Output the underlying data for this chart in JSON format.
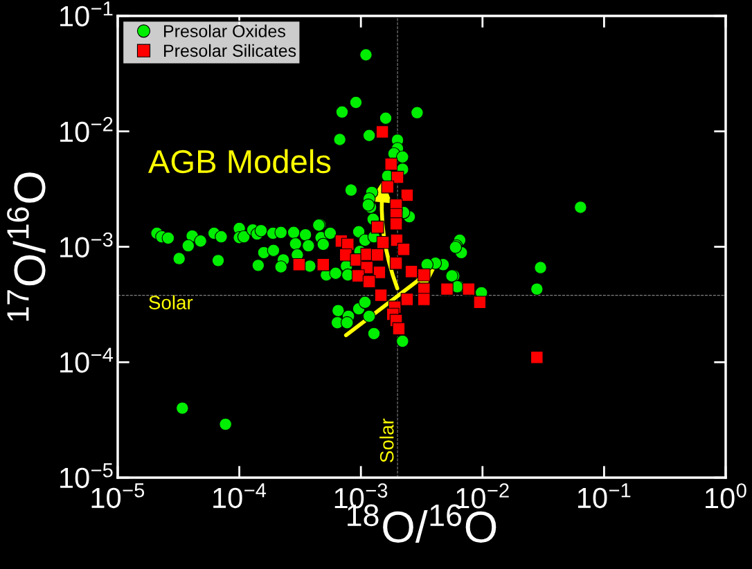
{
  "chart_data": {
    "type": "scatter",
    "xlabel": "$^{18}$O/$^{16}$O",
    "ylabel": "$^{17}$O/$^{16}$O",
    "log": "xy",
    "grid": false,
    "legend": "top left",
    "xlim": [
      1e-05,
      1
    ],
    "ylim": [
      1e-05,
      0.1
    ],
    "xticks": [
      {
        "value": 1e-05,
        "label": "10$^{−5}$"
      },
      {
        "value": 0.0001,
        "label": "10$^{−4}$"
      },
      {
        "value": 0.001,
        "label": "10$^{−3}$"
      },
      {
        "value": 0.01,
        "label": "10$^{−2}$"
      },
      {
        "value": 0.1,
        "label": "10$^{−1}$"
      },
      {
        "value": 1,
        "label": "10$^{0}$"
      }
    ],
    "yticks": [
      {
        "value": 1e-05,
        "label": "10$^{−5}$"
      },
      {
        "value": 0.0001,
        "label": "10$^{−4}$"
      },
      {
        "value": 0.001,
        "label": "10$^{−3}$"
      },
      {
        "value": 0.01,
        "label": "10$^{−2}$"
      },
      {
        "value": 0.1,
        "label": "10$^{−1}$"
      }
    ],
    "ref_lines": [
      {
        "axis": "x",
        "value": 0.002,
        "label": "Solar",
        "color": "#808080",
        "line_style": "dashed"
      },
      {
        "axis": "y",
        "value": 0.00038,
        "label": "Solar",
        "color": "#808080",
        "line_style": "dashed"
      }
    ],
    "annotations": [
      "AGB Models"
    ],
    "series": [
      {
        "name": "Presolar Oxides",
        "color": "#00ee00",
        "marker": "circle",
        "x": [
          0.0011,
          0.0007,
          0.00091,
          0.0029,
          0.0016,
          0.00117,
          0.00067,
          0.064,
          0.00083,
          0.00046,
          0.03,
          0.028,
          0.0064,
          0.0058,
          0.0065,
          0.0061,
          0.00128,
          3.4e-05,
          7.7e-05,
          2.1e-05,
          2.3e-05,
          2.6e-05,
          4.1e-05,
          3.8e-05,
          4.8e-05,
          3.2e-05,
          6.2e-05,
          7.1e-05,
          6.7e-05,
          0.0001,
          0.0001,
          0.000109,
          0.000129,
          0.00014,
          0.000151,
          0.000143,
          0.000159,
          0.000189,
          0.00022,
          0.000191,
          0.00023,
          0.00022,
          0.00028,
          0.00029,
          0.00035,
          0.00037,
          0.00045,
          0.00047,
          0.00049,
          0.00038,
          0.0003,
          0.002,
          0.002,
          0.00187,
          0.0022,
          0.0022,
          0.00166,
          0.00123,
          0.00117,
          0.0012,
          0.00126,
          0.0025,
          0.00225,
          0.00115,
          0.00056,
          0.00049,
          0.00052,
          0.00062,
          0.00076,
          0.00078,
          0.00096,
          0.00108,
          0.00128,
          0.00098,
          0.0067,
          0.006,
          0.00475,
          0.0041,
          0.0035,
          0.0056,
          0.0062,
          0.0098,
          0.00065,
          0.00079,
          0.00064,
          0.00077,
          0.00096,
          0.00108,
          0.0022,
          0.00117
        ],
        "values": [
          0.046,
          0.0147,
          0.0178,
          0.0145,
          0.013,
          0.0092,
          0.0085,
          0.0022,
          0.0031,
          0.00155,
          0.00066,
          0.00043,
          0.00045,
          0.00056,
          0.00114,
          0.00102,
          0.000177,
          4e-05,
          2.9e-05,
          0.00131,
          0.00122,
          0.00119,
          0.00124,
          0.00102,
          0.00112,
          0.00079,
          0.00131,
          0.00122,
          0.00076,
          0.00144,
          0.0012,
          0.00122,
          0.0014,
          0.00129,
          0.00138,
          0.00069,
          0.00089,
          0.00131,
          0.00133,
          0.00093,
          0.00077,
          0.00067,
          0.00133,
          0.00106,
          0.00127,
          0.00102,
          0.00154,
          0.0012,
          0.00105,
          0.00068,
          0.00085,
          0.0084,
          0.0071,
          0.0064,
          0.006,
          0.0047,
          0.0041,
          0.00296,
          0.0026,
          0.0022,
          0.00173,
          0.00182,
          0.00198,
          0.0023,
          0.00131,
          0.00105,
          0.00057,
          0.00059,
          0.00068,
          0.00057,
          0.00135,
          0.00114,
          0.00122,
          0.00091,
          0.00089,
          0.00099,
          0.0007,
          0.00072,
          0.0007,
          0.00056,
          0.00045,
          0.0004,
          0.00028,
          0.00025,
          0.00022,
          0.00022,
          0.00029,
          0.00033,
          0.000152,
          0.00025
        ]
      },
      {
        "name": "Presolar Silicates",
        "color": "#ff0000",
        "marker": "square",
        "x": [
          0.0015,
          0.00177,
          0.002,
          0.00166,
          0.0024,
          0.00195,
          0.00195,
          0.00195,
          0.00137,
          0.00197,
          0.00152,
          0.00069,
          0.00078,
          0.00075,
          0.00092,
          0.00112,
          0.00137,
          0.00225,
          0.00112,
          0.00142,
          0.00195,
          0.00095,
          0.00117,
          0.0026,
          0.0033,
          0.0033,
          0.0024,
          0.00146,
          0.0019,
          0.00183,
          0.00195,
          0.00205,
          0.0033,
          0.0051,
          0.0077,
          0.0095,
          0.00031,
          0.00049,
          0.028
        ],
        "values": [
          0.0099,
          0.0052,
          0.004,
          0.0033,
          0.0028,
          0.0023,
          0.0019,
          0.00158,
          0.00148,
          0.00114,
          0.00109,
          0.00112,
          0.00105,
          0.00085,
          0.00077,
          0.00086,
          0.00085,
          0.00095,
          0.00066,
          0.0006,
          0.00072,
          0.00056,
          0.0005,
          0.00061,
          0.00057,
          0.00043,
          0.00035,
          0.00038,
          0.0003,
          0.00026,
          0.00023,
          0.000195,
          0.00035,
          0.00043,
          0.00043,
          0.00033,
          0.0007,
          0.0007,
          0.00011
        ]
      }
    ]
  }
}
